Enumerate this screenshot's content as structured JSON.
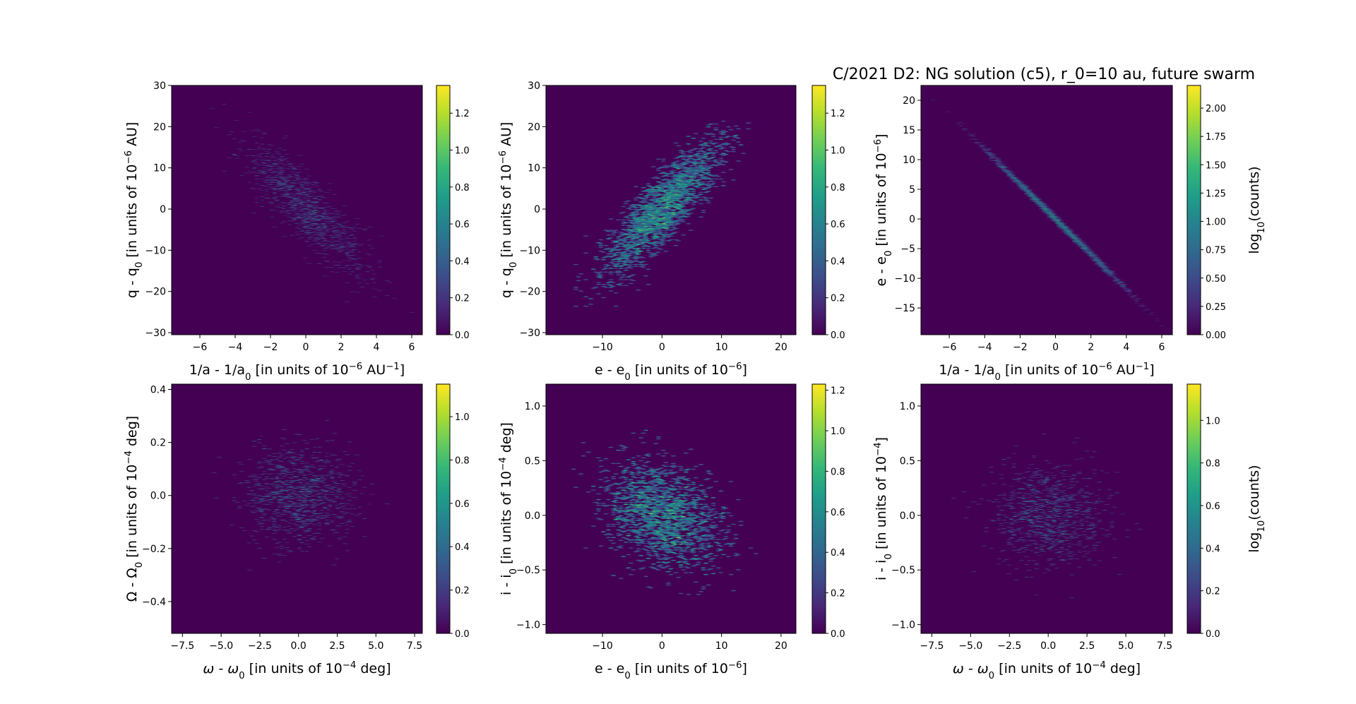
{
  "chart_data": {
    "title": "C/2021 D2: NG solution (c5), r_0=10 au, future swarm",
    "type": "heatmap",
    "subtype": "hexbin",
    "colormap": "viridis",
    "background_color": "#440154",
    "panels": [
      {
        "xlabel": [
          {
            "t": "1/a - 1/a"
          },
          {
            "t": "0",
            "s": "sub"
          },
          {
            "t": " [in units of 10"
          },
          {
            "t": "−6",
            "s": "sup"
          },
          {
            "t": " AU"
          },
          {
            "t": "−1",
            "s": "sup"
          },
          {
            "t": "]"
          }
        ],
        "ylabel": [
          {
            "t": "q - q"
          },
          {
            "t": "0",
            "s": "sub"
          },
          {
            "t": " [in units of 10"
          },
          {
            "t": "−6",
            "s": "sup"
          },
          {
            "t": " AU]"
          }
        ],
        "xlim": [
          -7.6,
          6.6
        ],
        "ylim": [
          -30.5,
          30
        ],
        "xticks": [
          -6,
          -4,
          -2,
          0,
          2,
          4,
          6
        ],
        "xticklabels": [
          "−6",
          "−4",
          "−2",
          "0",
          "2",
          "4",
          "6"
        ],
        "yticks": [
          -30,
          -20,
          -10,
          0,
          10,
          20,
          30
        ],
        "yticklabels": [
          "−30",
          "−20",
          "−10",
          "0",
          "10",
          "20",
          "30"
        ],
        "distribution": {
          "x_mean": 0,
          "y_mean": 0,
          "x_std": 2.2,
          "y_std": 10,
          "correlation": -0.85
        },
        "colorbar": {
          "range": [
            0,
            1.35
          ],
          "ticks": [
            0,
            0.2,
            0.4,
            0.6,
            0.8,
            1.0,
            1.2
          ],
          "ticklabels": [
            "0.0",
            "0.2",
            "0.4",
            "0.6",
            "0.8",
            "1.0",
            "1.2"
          ],
          "label": []
        }
      },
      {
        "xlabel": [
          {
            "t": "e - e"
          },
          {
            "t": "0",
            "s": "sub"
          },
          {
            "t": " [in units of 10"
          },
          {
            "t": "−6",
            "s": "sup"
          },
          {
            "t": "]"
          }
        ],
        "ylabel": [
          {
            "t": "q - q"
          },
          {
            "t": "0",
            "s": "sub"
          },
          {
            "t": " [in units of 10"
          },
          {
            "t": "−6",
            "s": "sup"
          },
          {
            "t": " AU]"
          }
        ],
        "xlim": [
          -19.5,
          22.5
        ],
        "ylim": [
          -30.5,
          30
        ],
        "xticks": [
          -10,
          0,
          10,
          20
        ],
        "xticklabels": [
          "−10",
          "0",
          "10",
          "20"
        ],
        "yticks": [
          -30,
          -20,
          -10,
          0,
          10,
          20,
          30
        ],
        "yticklabels": [
          "−30",
          "−20",
          "−10",
          "0",
          "10",
          "20",
          "30"
        ],
        "distribution": {
          "x_mean": 0,
          "y_mean": 0,
          "x_std": 6,
          "y_std": 10,
          "correlation": 0.85
        },
        "colorbar": {
          "range": [
            0,
            1.35
          ],
          "ticks": [
            0,
            0.2,
            0.4,
            0.6,
            0.8,
            1.0,
            1.2
          ],
          "ticklabels": [
            "0.0",
            "0.2",
            "0.4",
            "0.6",
            "0.8",
            "1.0",
            "1.2"
          ],
          "label": []
        }
      },
      {
        "xlabel": [
          {
            "t": "1/a - 1/a"
          },
          {
            "t": "0",
            "s": "sub"
          },
          {
            "t": " [in units of 10"
          },
          {
            "t": "−6",
            "s": "sup"
          },
          {
            "t": " AU"
          },
          {
            "t": "−1",
            "s": "sup"
          },
          {
            "t": "]"
          }
        ],
        "ylabel": [
          {
            "t": "e - e"
          },
          {
            "t": "0",
            "s": "sub"
          },
          {
            "t": " [in units of 10"
          },
          {
            "t": "−6",
            "s": "sup"
          },
          {
            "t": "]"
          }
        ],
        "xlim": [
          -7.6,
          6.6
        ],
        "ylim": [
          -19.5,
          22.5
        ],
        "xticks": [
          -6,
          -4,
          -2,
          0,
          2,
          4,
          6
        ],
        "xticklabels": [
          "−6",
          "−4",
          "−2",
          "0",
          "2",
          "4",
          "6"
        ],
        "yticks": [
          -15,
          -10,
          -5,
          0,
          5,
          10,
          15,
          20
        ],
        "yticklabels": [
          "−15",
          "−10",
          "−5",
          "0",
          "5",
          "10",
          "15",
          "20"
        ],
        "distribution": {
          "x_mean": 0,
          "y_mean": 0,
          "x_std": 2.2,
          "y_std": 6.5,
          "correlation": -1.0
        },
        "colorbar": {
          "range": [
            0,
            2.2
          ],
          "ticks": [
            0,
            0.25,
            0.5,
            0.75,
            1.0,
            1.25,
            1.5,
            1.75,
            2.0
          ],
          "ticklabels": [
            "0.00",
            "0.25",
            "0.50",
            "0.75",
            "1.00",
            "1.25",
            "1.50",
            "1.75",
            "2.00"
          ],
          "label": [
            {
              "t": "log"
            },
            {
              "t": "10",
              "s": "sub"
            },
            {
              "t": "(counts)"
            }
          ]
        }
      },
      {
        "xlabel": [
          {
            "t": "ω - ω",
            "i": true
          },
          {
            "t": "0",
            "s": "sub"
          },
          {
            "t": " [in units of 10"
          },
          {
            "t": "−4",
            "s": "sup"
          },
          {
            "t": " deg]"
          }
        ],
        "ylabel": [
          {
            "t": "Ω - Ω"
          },
          {
            "t": "0",
            "s": "sub"
          },
          {
            "t": " [in units of 10"
          },
          {
            "t": "−4",
            "s": "sup"
          },
          {
            "t": " deg]"
          }
        ],
        "xlim": [
          -8.2,
          8.0
        ],
        "ylim": [
          -0.52,
          0.42
        ],
        "xticks": [
          -7.5,
          -5,
          -2.5,
          0,
          2.5,
          5,
          7.5
        ],
        "xticklabels": [
          "−7.5",
          "−5.0",
          "−2.5",
          "0.0",
          "2.5",
          "5.0",
          "7.5"
        ],
        "yticks": [
          -0.4,
          -0.2,
          0,
          0.2,
          0.4
        ],
        "yticklabels": [
          "−0.4",
          "−0.2",
          "0.0",
          "0.2",
          "0.4"
        ],
        "distribution": {
          "x_mean": 0,
          "y_mean": 0,
          "x_std": 2.3,
          "y_std": 0.12,
          "correlation": 0
        },
        "colorbar": {
          "range": [
            0,
            1.15
          ],
          "ticks": [
            0,
            0.2,
            0.4,
            0.6,
            0.8,
            1.0
          ],
          "ticklabels": [
            "0.0",
            "0.2",
            "0.4",
            "0.6",
            "0.8",
            "1.0"
          ],
          "label": []
        }
      },
      {
        "xlabel": [
          {
            "t": "e - e"
          },
          {
            "t": "0",
            "s": "sub"
          },
          {
            "t": " [in units of 10"
          },
          {
            "t": "−6",
            "s": "sup"
          },
          {
            "t": "]"
          }
        ],
        "ylabel": [
          {
            "t": "i - i"
          },
          {
            "t": "0",
            "s": "sub"
          },
          {
            "t": " [in units of 10"
          },
          {
            "t": "−4",
            "s": "sup"
          },
          {
            "t": " deg]"
          }
        ],
        "xlim": [
          -19.5,
          22.5
        ],
        "ylim": [
          -1.08,
          1.2
        ],
        "xticks": [
          -10,
          0,
          10,
          20
        ],
        "xticklabels": [
          "−10",
          "0",
          "10",
          "20"
        ],
        "yticks": [
          -1,
          -0.5,
          0,
          0.5,
          1
        ],
        "yticklabels": [
          "−1.0",
          "−0.5",
          "0.0",
          "0.5",
          "1.0"
        ],
        "distribution": {
          "x_mean": 0,
          "y_mean": 0,
          "x_std": 6,
          "y_std": 0.3,
          "correlation": -0.3
        },
        "colorbar": {
          "range": [
            0,
            1.23
          ],
          "ticks": [
            0,
            0.2,
            0.4,
            0.6,
            0.8,
            1.0,
            1.2
          ],
          "ticklabels": [
            "0.0",
            "0.2",
            "0.4",
            "0.6",
            "0.8",
            "1.0",
            "1.2"
          ],
          "label": []
        }
      },
      {
        "xlabel": [
          {
            "t": "ω - ω",
            "i": true
          },
          {
            "t": "0",
            "s": "sub"
          },
          {
            "t": " [in units of 10"
          },
          {
            "t": "−4",
            "s": "sup"
          },
          {
            "t": " deg]"
          }
        ],
        "ylabel": [
          {
            "t": "i - i"
          },
          {
            "t": "0",
            "s": "sub"
          },
          {
            "t": " [in units of 10"
          },
          {
            "t": "−4",
            "s": "sup"
          },
          {
            "t": "]"
          }
        ],
        "xlim": [
          -8.2,
          8.0
        ],
        "ylim": [
          -1.08,
          1.2
        ],
        "xticks": [
          -7.5,
          -5,
          -2.5,
          0,
          2.5,
          5,
          7.5
        ],
        "xticklabels": [
          "−7.5",
          "−5.0",
          "−2.5",
          "0.0",
          "2.5",
          "5.0",
          "7.5"
        ],
        "yticks": [
          -1,
          -0.5,
          0,
          0.5,
          1
        ],
        "yticklabels": [
          "−1.0",
          "−0.5",
          "0.0",
          "0.5",
          "1.0"
        ],
        "distribution": {
          "x_mean": 0,
          "y_mean": 0,
          "x_std": 2.3,
          "y_std": 0.3,
          "correlation": 0
        },
        "colorbar": {
          "range": [
            0,
            1.17
          ],
          "ticks": [
            0,
            0.2,
            0.4,
            0.6,
            0.8,
            1.0
          ],
          "ticklabels": [
            "0.0",
            "0.2",
            "0.4",
            "0.6",
            "0.8",
            "1.0"
          ],
          "label": [
            {
              "t": "log"
            },
            {
              "t": "10",
              "s": "sub"
            },
            {
              "t": "(counts)"
            }
          ]
        }
      }
    ]
  }
}
